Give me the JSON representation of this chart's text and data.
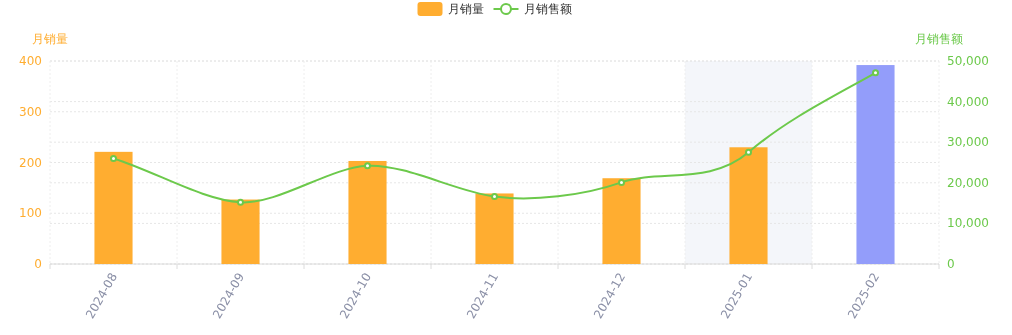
{
  "chart_data": {
    "type": "bar",
    "categories": [
      "2024-08",
      "2024-09",
      "2024-10",
      "2024-11",
      "2024-12",
      "2025-01",
      "2025-02"
    ],
    "ylabel": "月销量",
    "y2label": "月销售额",
    "series": [
      {
        "name": "月销量",
        "color": "#ffad30",
        "colors": [
          "#ffad30",
          "#ffad30",
          "#ffad30",
          "#ffad30",
          "#ffad30",
          "#ffad30",
          "#939dfa"
        ],
        "values": [
          221,
          127,
          203,
          139,
          169,
          230,
          392
        ]
      },
      {
        "name": "月销售额",
        "type": "line",
        "axis": "y2",
        "color": "#6cc94b",
        "values": [
          26000,
          15200,
          24200,
          16600,
          20100,
          27500,
          47100
        ]
      }
    ],
    "ylim": [
      0,
      400
    ],
    "yticks": [
      0,
      100,
      200,
      300,
      400
    ],
    "y2lim": [
      0,
      50000
    ],
    "y2ticks": [
      0,
      {
        "value": 10000,
        "label": "10,000"
      },
      {
        "value": 20000,
        "label": "20,000"
      },
      {
        "value": 30000,
        "label": "30,000"
      },
      {
        "value": 40000,
        "label": "40,000"
      },
      {
        "value": 50000,
        "label": "50,000"
      }
    ],
    "grid": true,
    "legend": "top",
    "marker": "circle",
    "bands": [
      {
        "axis": "x",
        "from": "2025-01",
        "to": "2025-01",
        "color": "#f4f6fa"
      }
    ]
  }
}
